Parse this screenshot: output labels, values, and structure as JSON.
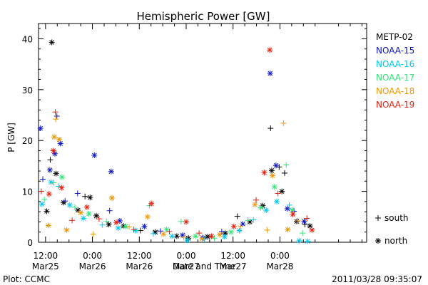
{
  "chart_data": {
    "type": "scatter",
    "title": "Hemispheric Power [GW]",
    "ylabel": "P [GW]",
    "xlabel": "Date and Time",
    "ylim": [
      0,
      43
    ],
    "yticks": [
      0,
      10,
      20,
      30,
      40
    ],
    "xrange_hours": [
      -1.8,
      82.2
    ],
    "xtick_labels": [
      {
        "hour": 0,
        "time": "12:00",
        "date": "Mar25"
      },
      {
        "hour": 12,
        "time": "0:00",
        "date": "Mar26"
      },
      {
        "hour": 24,
        "time": "12:00",
        "date": "Mar26"
      },
      {
        "hour": 36,
        "time": "0:00",
        "date": "Mar27"
      },
      {
        "hour": 48,
        "time": "12:00",
        "date": "Mar27"
      },
      {
        "hour": 60,
        "time": "0:00",
        "date": "Mar28"
      }
    ],
    "legend": [
      {
        "name": "METP-02",
        "color": "#000000"
      },
      {
        "name": "NOAA-15",
        "color": "#0a14c8"
      },
      {
        "name": "NOAA-16",
        "color": "#00c8f0"
      },
      {
        "name": "NOAA-17",
        "color": "#32e678"
      },
      {
        "name": "NOAA-18",
        "color": "#f09600"
      },
      {
        "name": "NOAA-19",
        "color": "#e61e0a"
      }
    ],
    "symbol_legend": {
      "south_label": "south",
      "north_label": "north"
    },
    "series": [
      {
        "name": "METP-02",
        "points": [
          {
            "x": 1.6,
            "y": 39.3,
            "m": "n"
          },
          {
            "x": 1.2,
            "y": 16.2,
            "m": "s"
          },
          {
            "x": 2.7,
            "y": 13.5,
            "m": "n"
          },
          {
            "x": 0.3,
            "y": 6.1,
            "m": "n"
          },
          {
            "x": 4.6,
            "y": 7.8,
            "m": "n"
          },
          {
            "x": 8.3,
            "y": 6.3,
            "m": "n"
          },
          {
            "x": 10.1,
            "y": 9.0,
            "m": "s"
          },
          {
            "x": 11.4,
            "y": 8.8,
            "m": "n"
          },
          {
            "x": 13.0,
            "y": 5.2,
            "m": "n"
          },
          {
            "x": 16.2,
            "y": 3.5,
            "m": "n"
          },
          {
            "x": 20.0,
            "y": 3.2,
            "m": "n"
          },
          {
            "x": 24.3,
            "y": 2.3,
            "m": "s"
          },
          {
            "x": 28.1,
            "y": 2.0,
            "m": "n"
          },
          {
            "x": 33.6,
            "y": 1.2,
            "m": "n"
          },
          {
            "x": 36.6,
            "y": 0.8,
            "m": "n"
          },
          {
            "x": 41.5,
            "y": 1.1,
            "m": "n"
          },
          {
            "x": 46.0,
            "y": 1.8,
            "m": "n"
          },
          {
            "x": 49.1,
            "y": 5.1,
            "m": "s"
          },
          {
            "x": 52.3,
            "y": 4.0,
            "m": "n"
          },
          {
            "x": 55.6,
            "y": 7.2,
            "m": "n"
          },
          {
            "x": 57.6,
            "y": 22.4,
            "m": "s"
          },
          {
            "x": 57.9,
            "y": 14.1,
            "m": "n"
          },
          {
            "x": 59.8,
            "y": 14.8,
            "m": "s"
          },
          {
            "x": 60.5,
            "y": 10.0,
            "m": "n"
          },
          {
            "x": 61.2,
            "y": 13.6,
            "m": "s"
          },
          {
            "x": 64.3,
            "y": 4.1,
            "m": "n"
          },
          {
            "x": 66.4,
            "y": 3.5,
            "m": "s"
          },
          {
            "x": 67.7,
            "y": 3.2,
            "m": "n"
          }
        ]
      },
      {
        "name": "NOAA-15",
        "points": [
          {
            "x": -1.3,
            "y": 22.4,
            "m": "n"
          },
          {
            "x": -0.7,
            "y": 12.4,
            "m": "s"
          },
          {
            "x": 1.1,
            "y": 14.2,
            "m": "n"
          },
          {
            "x": 2.4,
            "y": 17.4,
            "m": "n"
          },
          {
            "x": 2.9,
            "y": 24.8,
            "m": "s"
          },
          {
            "x": 3.8,
            "y": 19.4,
            "m": "n"
          },
          {
            "x": 5.0,
            "y": 8.1,
            "m": "s"
          },
          {
            "x": 8.2,
            "y": 9.6,
            "m": "s"
          },
          {
            "x": 12.5,
            "y": 17.1,
            "m": "n"
          },
          {
            "x": 16.8,
            "y": 13.9,
            "m": "n"
          },
          {
            "x": 16.4,
            "y": 6.2,
            "m": "s"
          },
          {
            "x": 19.0,
            "y": 4.2,
            "m": "n"
          },
          {
            "x": 25.3,
            "y": 3.1,
            "m": "n"
          },
          {
            "x": 29.4,
            "y": 2.2,
            "m": "s"
          },
          {
            "x": 35.1,
            "y": 1.4,
            "m": "n"
          },
          {
            "x": 40.3,
            "y": 0.9,
            "m": "n"
          },
          {
            "x": 45.1,
            "y": 2.1,
            "m": "s"
          },
          {
            "x": 50.5,
            "y": 3.6,
            "m": "n"
          },
          {
            "x": 57.5,
            "y": 33.2,
            "m": "n"
          },
          {
            "x": 59.0,
            "y": 15.1,
            "m": "n"
          },
          {
            "x": 61.9,
            "y": 6.6,
            "m": "n"
          },
          {
            "x": 63.6,
            "y": 6.1,
            "m": "s"
          },
          {
            "x": 66.2,
            "y": 4.1,
            "m": "n"
          }
        ]
      },
      {
        "name": "NOAA-16",
        "points": [
          {
            "x": -0.9,
            "y": 7.5,
            "m": "n"
          },
          {
            "x": 1.4,
            "y": 11.8,
            "m": "n"
          },
          {
            "x": 3.3,
            "y": 11.0,
            "m": "s"
          },
          {
            "x": 6.2,
            "y": 7.3,
            "m": "n"
          },
          {
            "x": 9.7,
            "y": 4.7,
            "m": "n"
          },
          {
            "x": 14.5,
            "y": 3.4,
            "m": "s"
          },
          {
            "x": 18.6,
            "y": 2.8,
            "m": "n"
          },
          {
            "x": 23.1,
            "y": 2.3,
            "m": "n"
          },
          {
            "x": 27.6,
            "y": 1.7,
            "m": "s"
          },
          {
            "x": 32.4,
            "y": 1.2,
            "m": "n"
          },
          {
            "x": 36.3,
            "y": 0.4,
            "m": "n"
          },
          {
            "x": 40.7,
            "y": 0.6,
            "m": "s"
          },
          {
            "x": 45.8,
            "y": 1.1,
            "m": "n"
          },
          {
            "x": 49.6,
            "y": 2.3,
            "m": "n"
          },
          {
            "x": 53.2,
            "y": 4.4,
            "m": "s"
          },
          {
            "x": 56.5,
            "y": 6.3,
            "m": "n"
          },
          {
            "x": 59.2,
            "y": 8.0,
            "m": "n"
          },
          {
            "x": 62.4,
            "y": 7.3,
            "m": "s"
          },
          {
            "x": 64.9,
            "y": 0.3,
            "m": "n"
          },
          {
            "x": 67.1,
            "y": 0.2,
            "m": "n"
          }
        ]
      },
      {
        "name": "NOAA-17",
        "points": [
          {
            "x": -0.3,
            "y": 8.4,
            "m": "s"
          },
          {
            "x": 2.1,
            "y": 11.7,
            "m": "s"
          },
          {
            "x": 4.2,
            "y": 12.8,
            "m": "n"
          },
          {
            "x": 7.5,
            "y": 6.9,
            "m": "s"
          },
          {
            "x": 11.1,
            "y": 5.6,
            "m": "n"
          },
          {
            "x": 15.6,
            "y": 4.1,
            "m": "s"
          },
          {
            "x": 20.5,
            "y": 3.1,
            "m": "n"
          },
          {
            "x": 26.6,
            "y": 7.2,
            "m": "s"
          },
          {
            "x": 31.0,
            "y": 2.5,
            "m": "n"
          },
          {
            "x": 34.7,
            "y": 4.1,
            "m": "s"
          },
          {
            "x": 38.4,
            "y": 1.2,
            "m": "n"
          },
          {
            "x": 43.2,
            "y": 0.8,
            "m": "s"
          },
          {
            "x": 47.5,
            "y": 2.0,
            "m": "n"
          },
          {
            "x": 51.8,
            "y": 4.3,
            "m": "s"
          },
          {
            "x": 55.1,
            "y": 6.8,
            "m": "n"
          },
          {
            "x": 58.6,
            "y": 10.9,
            "m": "n"
          },
          {
            "x": 61.6,
            "y": 15.2,
            "m": "s"
          },
          {
            "x": 63.1,
            "y": 6.4,
            "m": "n"
          },
          {
            "x": 65.8,
            "y": 1.8,
            "m": "s"
          }
        ]
      },
      {
        "name": "NOAA-18",
        "points": [
          {
            "x": 0.7,
            "y": 3.3,
            "m": "n"
          },
          {
            "x": 2.2,
            "y": 20.7,
            "m": "n"
          },
          {
            "x": 2.6,
            "y": 24.2,
            "m": "s"
          },
          {
            "x": 3.5,
            "y": 20.2,
            "m": "n"
          },
          {
            "x": 5.4,
            "y": 2.4,
            "m": "n"
          },
          {
            "x": 9.0,
            "y": 5.8,
            "m": "n"
          },
          {
            "x": 12.2,
            "y": 1.6,
            "m": "s"
          },
          {
            "x": 17.0,
            "y": 8.7,
            "m": "n"
          },
          {
            "x": 21.4,
            "y": 3.0,
            "m": "s"
          },
          {
            "x": 26.1,
            "y": 5.0,
            "m": "n"
          },
          {
            "x": 30.2,
            "y": 1.6,
            "m": "n"
          },
          {
            "x": 35.4,
            "y": 1.0,
            "m": "s"
          },
          {
            "x": 40.1,
            "y": 0.7,
            "m": "n"
          },
          {
            "x": 44.6,
            "y": 1.5,
            "m": "n"
          },
          {
            "x": 49.9,
            "y": 3.1,
            "m": "s"
          },
          {
            "x": 53.6,
            "y": 7.4,
            "m": "n"
          },
          {
            "x": 56.7,
            "y": 2.4,
            "m": "s"
          },
          {
            "x": 58.1,
            "y": 13.1,
            "m": "n"
          },
          {
            "x": 60.9,
            "y": 23.4,
            "m": "s"
          },
          {
            "x": 62.0,
            "y": 2.5,
            "m": "n"
          },
          {
            "x": 64.6,
            "y": 4.2,
            "m": "s"
          }
        ]
      },
      {
        "name": "NOAA-19",
        "points": [
          {
            "x": -1.1,
            "y": 10.0,
            "m": "s"
          },
          {
            "x": 0.9,
            "y": 9.5,
            "m": "n"
          },
          {
            "x": 2.0,
            "y": 18.0,
            "m": "n"
          },
          {
            "x": 2.5,
            "y": 25.6,
            "m": "s"
          },
          {
            "x": 4.1,
            "y": 10.7,
            "m": "n"
          },
          {
            "x": 6.8,
            "y": 4.3,
            "m": "s"
          },
          {
            "x": 10.6,
            "y": 6.9,
            "m": "n"
          },
          {
            "x": 13.7,
            "y": 4.6,
            "m": "s"
          },
          {
            "x": 18.1,
            "y": 3.9,
            "m": "n"
          },
          {
            "x": 22.6,
            "y": 2.5,
            "m": "s"
          },
          {
            "x": 27.1,
            "y": 7.6,
            "m": "n"
          },
          {
            "x": 31.7,
            "y": 2.1,
            "m": "s"
          },
          {
            "x": 36.0,
            "y": 4.0,
            "m": "n"
          },
          {
            "x": 39.3,
            "y": 1.8,
            "m": "s"
          },
          {
            "x": 42.5,
            "y": 1.2,
            "m": "n"
          },
          {
            "x": 48.2,
            "y": 3.1,
            "m": "n"
          },
          {
            "x": 53.9,
            "y": 8.3,
            "m": "s"
          },
          {
            "x": 56.0,
            "y": 13.7,
            "m": "n"
          },
          {
            "x": 57.4,
            "y": 37.8,
            "m": "n"
          },
          {
            "x": 59.5,
            "y": 9.6,
            "m": "s"
          },
          {
            "x": 63.3,
            "y": 5.5,
            "m": "n"
          },
          {
            "x": 66.9,
            "y": 4.7,
            "m": "s"
          },
          {
            "x": 68.2,
            "y": 2.4,
            "m": "n"
          }
        ]
      }
    ]
  },
  "footer": {
    "left": "Plot: CCMC",
    "right": "2011/03/28 09:35:07"
  }
}
